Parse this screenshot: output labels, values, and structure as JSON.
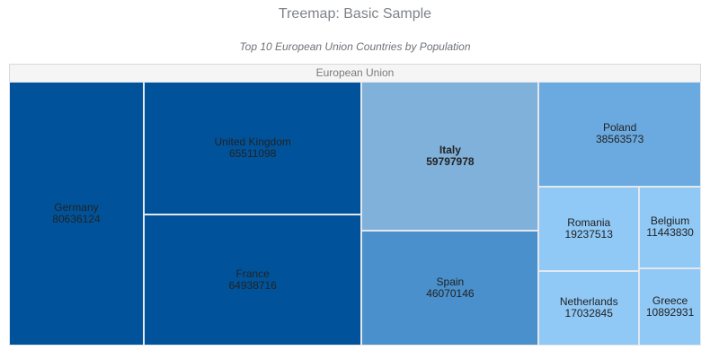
{
  "chart_data": {
    "type": "treemap",
    "title": "Treemap: Basic Sample",
    "subtitle": "Top 10 European Union Countries by Population",
    "root": {
      "name": "European Union"
    },
    "items": [
      {
        "name": "Germany",
        "value": 80636124,
        "color": "#00539b"
      },
      {
        "name": "United Kingdom",
        "value": 65511098,
        "color": "#00539b"
      },
      {
        "name": "France",
        "value": 64938716,
        "color": "#00539b"
      },
      {
        "name": "Italy",
        "value": 59797978,
        "color": "#80b1da",
        "highlighted": true
      },
      {
        "name": "Spain",
        "value": 46070146,
        "color": "#4a90cc"
      },
      {
        "name": "Poland",
        "value": 38563573,
        "color": "#6baae0"
      },
      {
        "name": "Romania",
        "value": 19237513,
        "color": "#90c8f6"
      },
      {
        "name": "Netherlands",
        "value": 17032845,
        "color": "#90c8f6"
      },
      {
        "name": "Belgium",
        "value": 11443830,
        "color": "#90c8f6"
      },
      {
        "name": "Greece",
        "value": 10892931,
        "color": "#90c8f6"
      }
    ]
  }
}
